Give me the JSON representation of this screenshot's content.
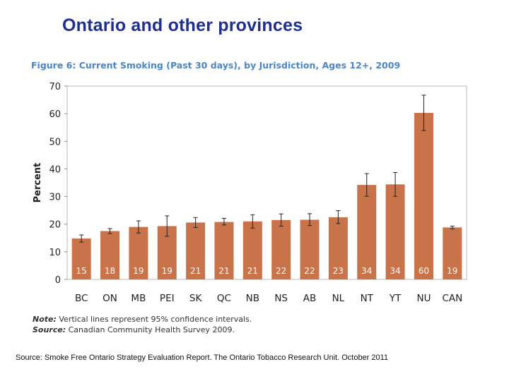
{
  "slide": {
    "title": "Ontario and other provinces",
    "source": "Source: Smoke Free Ontario Strategy Evaluation Report. The Ontario Tobacco Research Unit. October 2011"
  },
  "chart_data": {
    "type": "bar",
    "title": "Figure 6: Current Smoking (Past 30 days), by Jurisdiction, Ages 12+, 2009",
    "xlabel": "",
    "ylabel": "Percent",
    "ylim": [
      0,
      70
    ],
    "yticks": [
      0,
      10,
      20,
      30,
      40,
      50,
      60,
      70
    ],
    "grid": false,
    "legend": "none",
    "bar_color": "#c8734a",
    "categories": [
      "BC",
      "ON",
      "MB",
      "PEI",
      "SK",
      "QC",
      "NB",
      "NS",
      "AB",
      "NL",
      "NT",
      "YT",
      "NU",
      "CAN"
    ],
    "values": [
      14.8,
      17.5,
      19.0,
      19.3,
      20.6,
      20.8,
      21.0,
      21.5,
      21.6,
      22.5,
      34.2,
      34.4,
      60.3,
      18.8
    ],
    "data_labels": [
      "15",
      "18",
      "19",
      "19",
      "21",
      "21",
      "21",
      "22",
      "22",
      "23",
      "34",
      "34",
      "60",
      "19"
    ],
    "ci_low": [
      13.5,
      16.6,
      16.8,
      15.6,
      18.8,
      19.7,
      18.6,
      19.3,
      19.5,
      20.2,
      30.1,
      30.1,
      53.9,
      18.3
    ],
    "ci_high": [
      16.1,
      18.4,
      21.2,
      23.0,
      22.4,
      22.1,
      23.4,
      23.7,
      23.8,
      24.9,
      38.3,
      38.7,
      66.7,
      19.3
    ],
    "note_label": "Note:",
    "note": "Vertical lines represent 95% confidence intervals.",
    "source_label": "Source:",
    "source": "Canadian Community Health Survey 2009."
  }
}
